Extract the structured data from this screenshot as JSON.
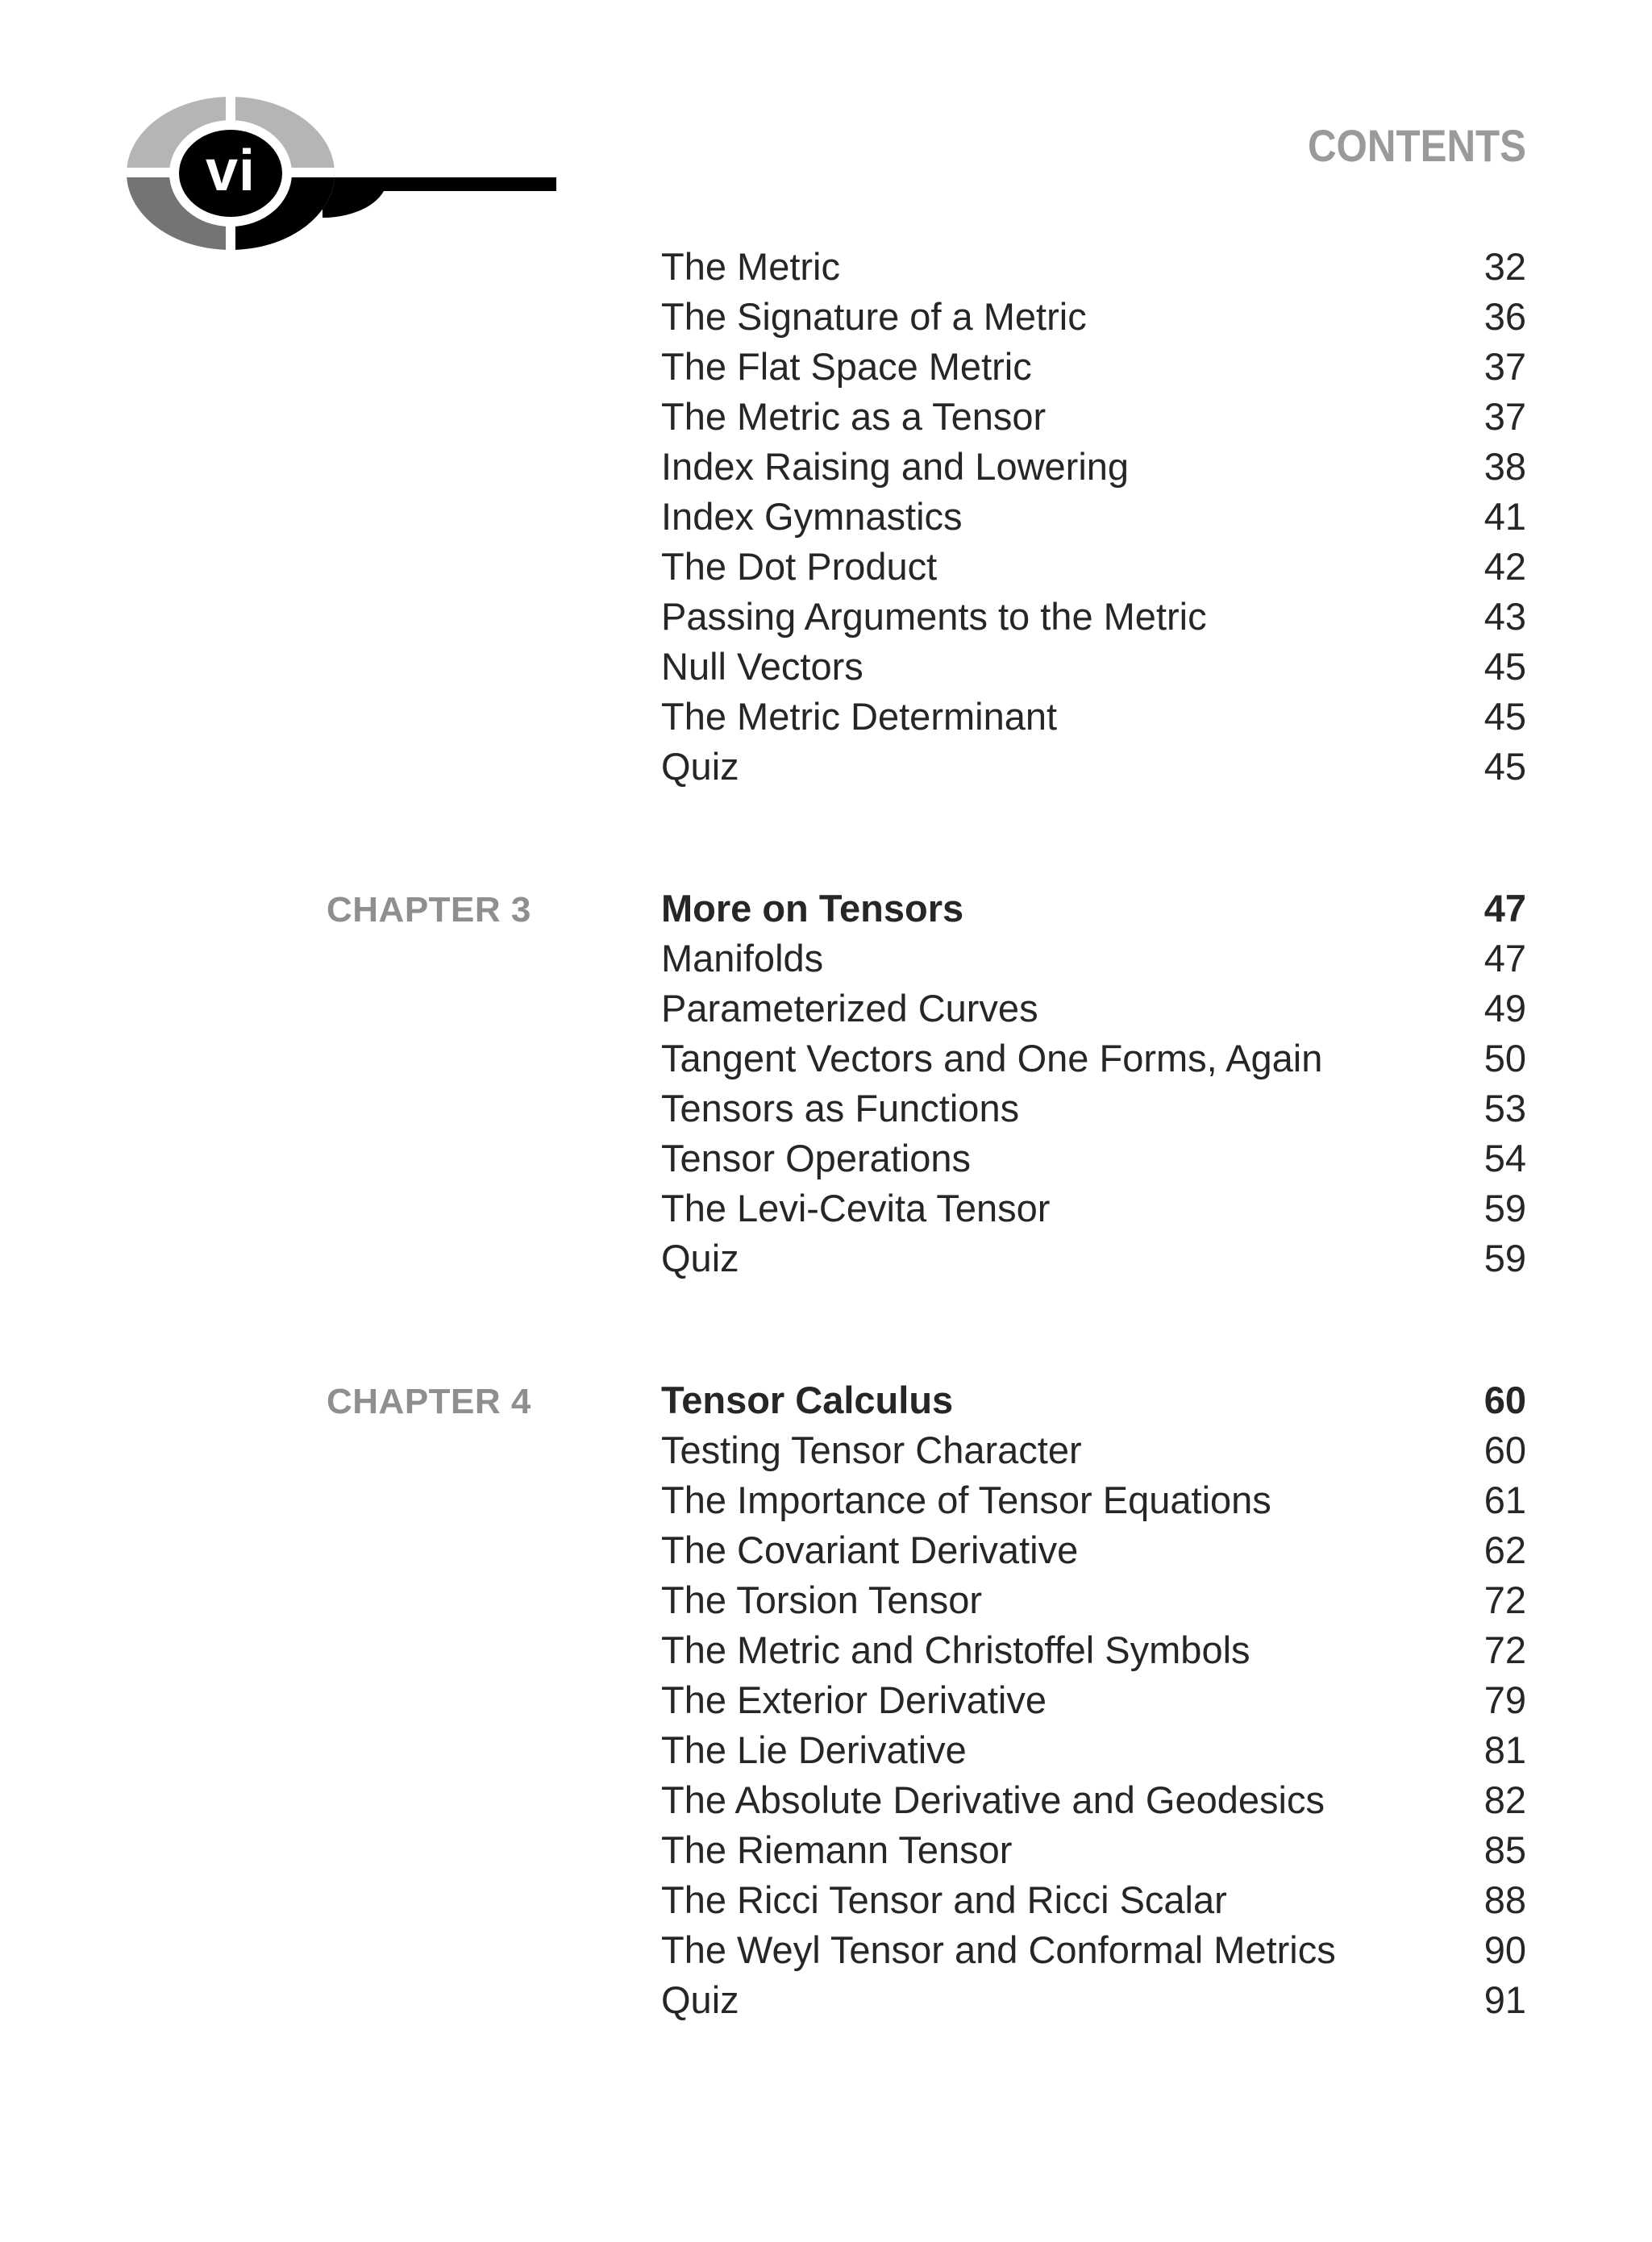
{
  "page": {
    "folio": "vi",
    "header_title": "CONTENTS"
  },
  "colors": {
    "text": "#262626",
    "header_gray": "#9a9a9a",
    "chapter_gray": "#8f8f8f",
    "logo_light_gray": "#b5b5b5",
    "logo_mid_gray": "#747474",
    "logo_black": "#000000"
  },
  "toc": {
    "sections": [
      {
        "chapter_label": "",
        "heading": null,
        "entries": [
          {
            "title": "The Metric",
            "page": "32"
          },
          {
            "title": "The Signature of a Metric",
            "page": "36"
          },
          {
            "title": "The Flat Space Metric",
            "page": "37"
          },
          {
            "title": "The Metric as a Tensor",
            "page": "37"
          },
          {
            "title": "Index Raising and Lowering",
            "page": "38"
          },
          {
            "title": "Index Gymnastics",
            "page": "41"
          },
          {
            "title": "The Dot Product",
            "page": "42"
          },
          {
            "title": "Passing Arguments to the Metric",
            "page": "43"
          },
          {
            "title": "Null Vectors",
            "page": "45"
          },
          {
            "title": "The Metric Determinant",
            "page": "45"
          },
          {
            "title": "Quiz",
            "page": "45"
          }
        ]
      },
      {
        "chapter_label": "CHAPTER 3",
        "heading": {
          "title": "More on Tensors",
          "page": "47"
        },
        "entries": [
          {
            "title": "Manifolds",
            "page": "47"
          },
          {
            "title": "Parameterized Curves",
            "page": "49"
          },
          {
            "title": "Tangent Vectors and One Forms, Again",
            "page": "50"
          },
          {
            "title": "Tensors as Functions",
            "page": "53"
          },
          {
            "title": "Tensor Operations",
            "page": "54"
          },
          {
            "title": "The Levi-Cevita Tensor",
            "page": "59"
          },
          {
            "title": "Quiz",
            "page": "59"
          }
        ]
      },
      {
        "chapter_label": "CHAPTER 4",
        "heading": {
          "title": "Tensor Calculus",
          "page": "60"
        },
        "entries": [
          {
            "title": "Testing Tensor Character",
            "page": "60"
          },
          {
            "title": "The Importance of Tensor Equations",
            "page": "61"
          },
          {
            "title": "The Covariant Derivative",
            "page": "62"
          },
          {
            "title": "The Torsion Tensor",
            "page": "72"
          },
          {
            "title": "The Metric and Christoffel Symbols",
            "page": "72"
          },
          {
            "title": "The Exterior Derivative",
            "page": "79"
          },
          {
            "title": "The Lie Derivative",
            "page": "81"
          },
          {
            "title": "The Absolute Derivative and Geodesics",
            "page": "82"
          },
          {
            "title": "The Riemann Tensor",
            "page": "85"
          },
          {
            "title": "The Ricci Tensor and Ricci Scalar",
            "page": "88"
          },
          {
            "title": "The Weyl Tensor and Conformal Metrics",
            "page": "90"
          },
          {
            "title": "Quiz",
            "page": "91"
          }
        ]
      }
    ]
  }
}
